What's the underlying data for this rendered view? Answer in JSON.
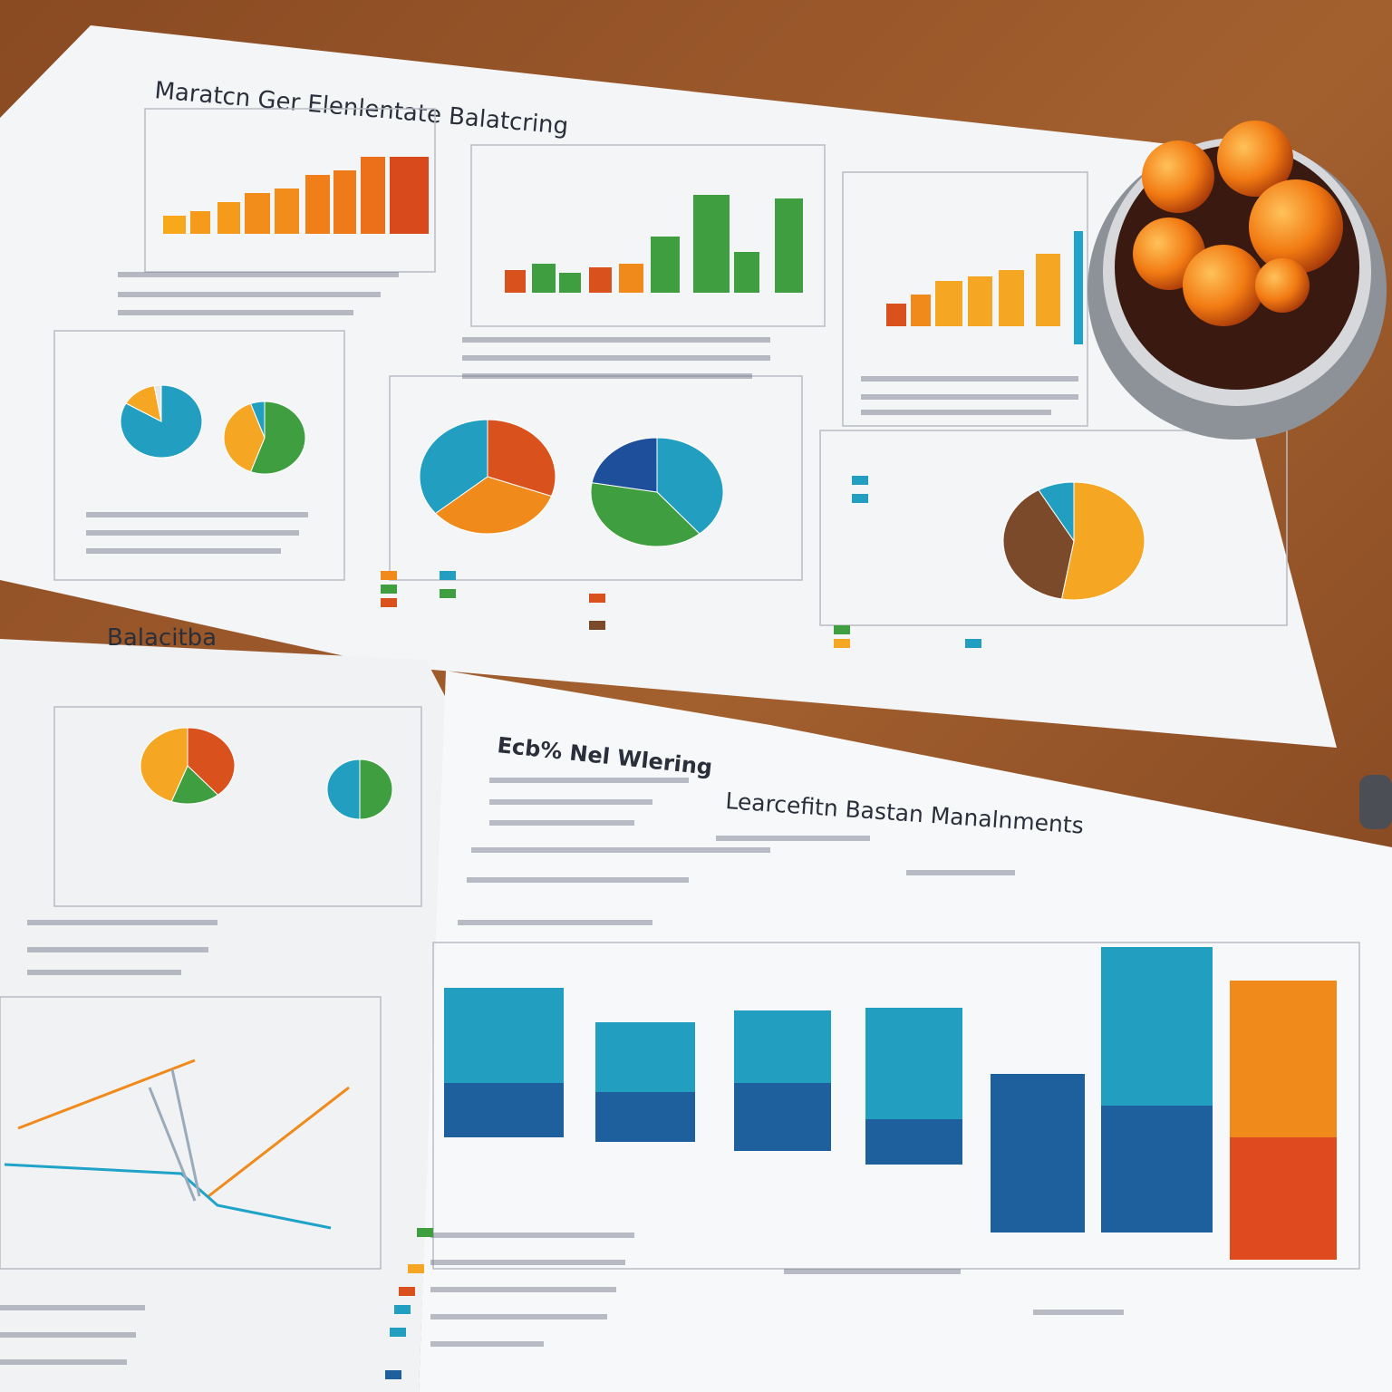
{
  "texts": {
    "top_title": "Maratcn Ger Elenlentate Balatcring",
    "left_page_title": "Balacitba",
    "section_title": "Ecb% Nel Wlering",
    "main_title": "Learcefitn Bastan Manalnments"
  }
}
